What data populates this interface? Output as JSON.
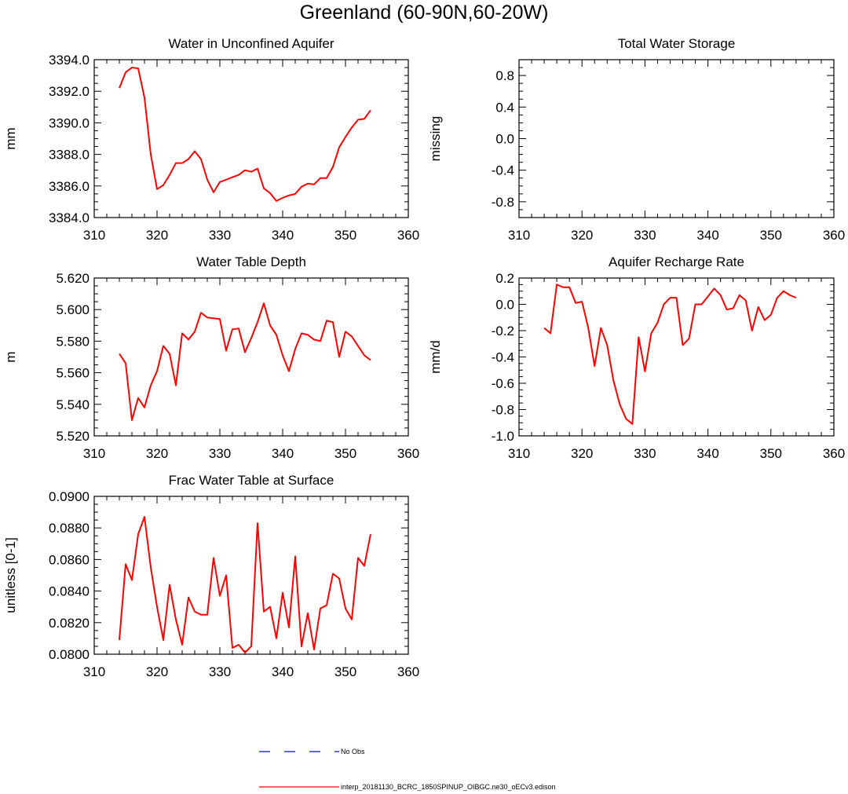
{
  "figure_title": "Greenland (60-90N,60-20W)",
  "colors": {
    "model": "#ff0000",
    "obs": "#0000ff",
    "axis": "#000000"
  },
  "legend": {
    "obs_label": "No Obs",
    "model_label": "interp_20181130_BCRC_1850SPINUP_OIBGC.ne30_oECv3.edison"
  },
  "chart_data": [
    {
      "type": "line",
      "title": "Water in Unconfined Aquifer",
      "xlabel": "",
      "ylabel": "mm",
      "xlim": [
        310,
        360
      ],
      "ylim": [
        3384.0,
        3394.0
      ],
      "x_ticks": [
        "310",
        "320",
        "330",
        "340",
        "350",
        "360"
      ],
      "y_ticks": [
        "3384.0",
        "3386.0",
        "3388.0",
        "3390.0",
        "3392.0",
        "3394.0"
      ],
      "series": [
        {
          "name": "model",
          "x": [
            314,
            315,
            316,
            317,
            318,
            319,
            320,
            321,
            322,
            323,
            324,
            325,
            326,
            327,
            328,
            329,
            330,
            331,
            332,
            333,
            334,
            335,
            336,
            337,
            338,
            339,
            340,
            341,
            342,
            343,
            344,
            345,
            346,
            347,
            348,
            349,
            350,
            351,
            352,
            353,
            354
          ],
          "values": [
            3392.2,
            3393.2,
            3393.5,
            3393.45,
            3391.6,
            3388.0,
            3385.8,
            3386.05,
            3386.7,
            3387.45,
            3387.45,
            3387.7,
            3388.2,
            3387.7,
            3386.4,
            3385.6,
            3386.25,
            3386.4,
            3386.55,
            3386.7,
            3387.0,
            3386.9,
            3387.1,
            3385.85,
            3385.55,
            3385.05,
            3385.25,
            3385.4,
            3385.5,
            3385.95,
            3386.15,
            3386.1,
            3386.5,
            3386.5,
            3387.2,
            3388.45,
            3389.1,
            3389.7,
            3390.2,
            3390.25,
            3390.8
          ]
        }
      ]
    },
    {
      "type": "line",
      "title": "Total Water Storage",
      "xlabel": "",
      "ylabel": "missing",
      "xlim": [
        310,
        360
      ],
      "ylim": [
        -1.0,
        1.0
      ],
      "x_ticks": [
        "310",
        "320",
        "330",
        "340",
        "350",
        "360"
      ],
      "y_ticks": [
        "-0.8",
        "-0.4",
        "0.0",
        "0.4",
        "0.8"
      ],
      "series": []
    },
    {
      "type": "line",
      "title": "Water Table Depth",
      "xlabel": "",
      "ylabel": "m",
      "xlim": [
        310,
        360
      ],
      "ylim": [
        5.52,
        5.62
      ],
      "x_ticks": [
        "310",
        "320",
        "330",
        "340",
        "350",
        "360"
      ],
      "y_ticks": [
        "5.520",
        "5.540",
        "5.560",
        "5.580",
        "5.600",
        "5.620"
      ],
      "series": [
        {
          "name": "model",
          "x": [
            314,
            315,
            316,
            317,
            318,
            319,
            320,
            321,
            322,
            323,
            324,
            325,
            326,
            327,
            328,
            329,
            330,
            331,
            332,
            333,
            334,
            335,
            336,
            337,
            338,
            339,
            340,
            341,
            342,
            343,
            344,
            345,
            346,
            347,
            348,
            349,
            350,
            351,
            352,
            353,
            354
          ],
          "values": [
            5.572,
            5.566,
            5.53,
            5.544,
            5.538,
            5.552,
            5.561,
            5.577,
            5.572,
            5.552,
            5.585,
            5.581,
            5.586,
            5.598,
            5.595,
            5.5945,
            5.594,
            5.574,
            5.5875,
            5.588,
            5.573,
            5.582,
            5.592,
            5.604,
            5.59,
            5.584,
            5.571,
            5.561,
            5.575,
            5.585,
            5.584,
            5.581,
            5.58,
            5.593,
            5.592,
            5.57,
            5.586,
            5.583,
            5.577,
            5.571,
            5.568
          ]
        }
      ]
    },
    {
      "type": "line",
      "title": "Aquifer Recharge Rate",
      "xlabel": "",
      "ylabel": "mm/d",
      "xlim": [
        310,
        360
      ],
      "ylim": [
        -1.0,
        0.2
      ],
      "x_ticks": [
        "310",
        "320",
        "330",
        "340",
        "350",
        "360"
      ],
      "y_ticks": [
        "-1.0",
        "-0.8",
        "-0.6",
        "-0.4",
        "-0.2",
        "0.0",
        "0.2"
      ],
      "series": [
        {
          "name": "model",
          "x": [
            314,
            315,
            316,
            317,
            318,
            319,
            320,
            321,
            322,
            323,
            324,
            325,
            326,
            327,
            328,
            329,
            330,
            331,
            332,
            333,
            334,
            335,
            336,
            337,
            338,
            339,
            340,
            341,
            342,
            343,
            344,
            345,
            346,
            347,
            348,
            349,
            350,
            351,
            352,
            353,
            354
          ],
          "values": [
            -0.18,
            -0.22,
            0.15,
            0.13,
            0.13,
            0.01,
            0.02,
            -0.18,
            -0.47,
            -0.18,
            -0.31,
            -0.58,
            -0.76,
            -0.87,
            -0.91,
            -0.25,
            -0.51,
            -0.22,
            -0.14,
            0.0,
            0.05,
            0.05,
            -0.31,
            -0.26,
            0.0,
            0.0,
            0.06,
            0.12,
            0.07,
            -0.04,
            -0.03,
            0.07,
            0.03,
            -0.2,
            -0.02,
            -0.12,
            -0.08,
            0.05,
            0.1,
            0.07,
            0.05
          ]
        }
      ]
    },
    {
      "type": "line",
      "title": "Frac Water Table at Surface",
      "xlabel": "",
      "ylabel": "unitless [0-1]",
      "xlim": [
        310,
        360
      ],
      "ylim": [
        0.08,
        0.09
      ],
      "x_ticks": [
        "310",
        "320",
        "330",
        "340",
        "350",
        "360"
      ],
      "y_ticks": [
        "0.0800",
        "0.0820",
        "0.0840",
        "0.0860",
        "0.0880",
        "0.0900"
      ],
      "series": [
        {
          "name": "model",
          "x": [
            314,
            315,
            316,
            317,
            318,
            319,
            320,
            321,
            322,
            323,
            324,
            325,
            326,
            327,
            328,
            329,
            330,
            331,
            332,
            333,
            334,
            335,
            336,
            337,
            338,
            339,
            340,
            341,
            342,
            343,
            344,
            345,
            346,
            347,
            348,
            349,
            350,
            351,
            352,
            353,
            354
          ],
          "values": [
            0.0809,
            0.0857,
            0.0847,
            0.0876,
            0.0887,
            0.0855,
            0.083,
            0.0809,
            0.0844,
            0.0822,
            0.0806,
            0.0836,
            0.0827,
            0.0825,
            0.0825,
            0.0861,
            0.0837,
            0.085,
            0.0804,
            0.0806,
            0.0801,
            0.0805,
            0.0883,
            0.0827,
            0.083,
            0.081,
            0.0839,
            0.0817,
            0.0862,
            0.0805,
            0.0826,
            0.0803,
            0.0829,
            0.0831,
            0.0851,
            0.0848,
            0.0829,
            0.0822,
            0.0861,
            0.0856,
            0.0876
          ]
        }
      ]
    }
  ]
}
